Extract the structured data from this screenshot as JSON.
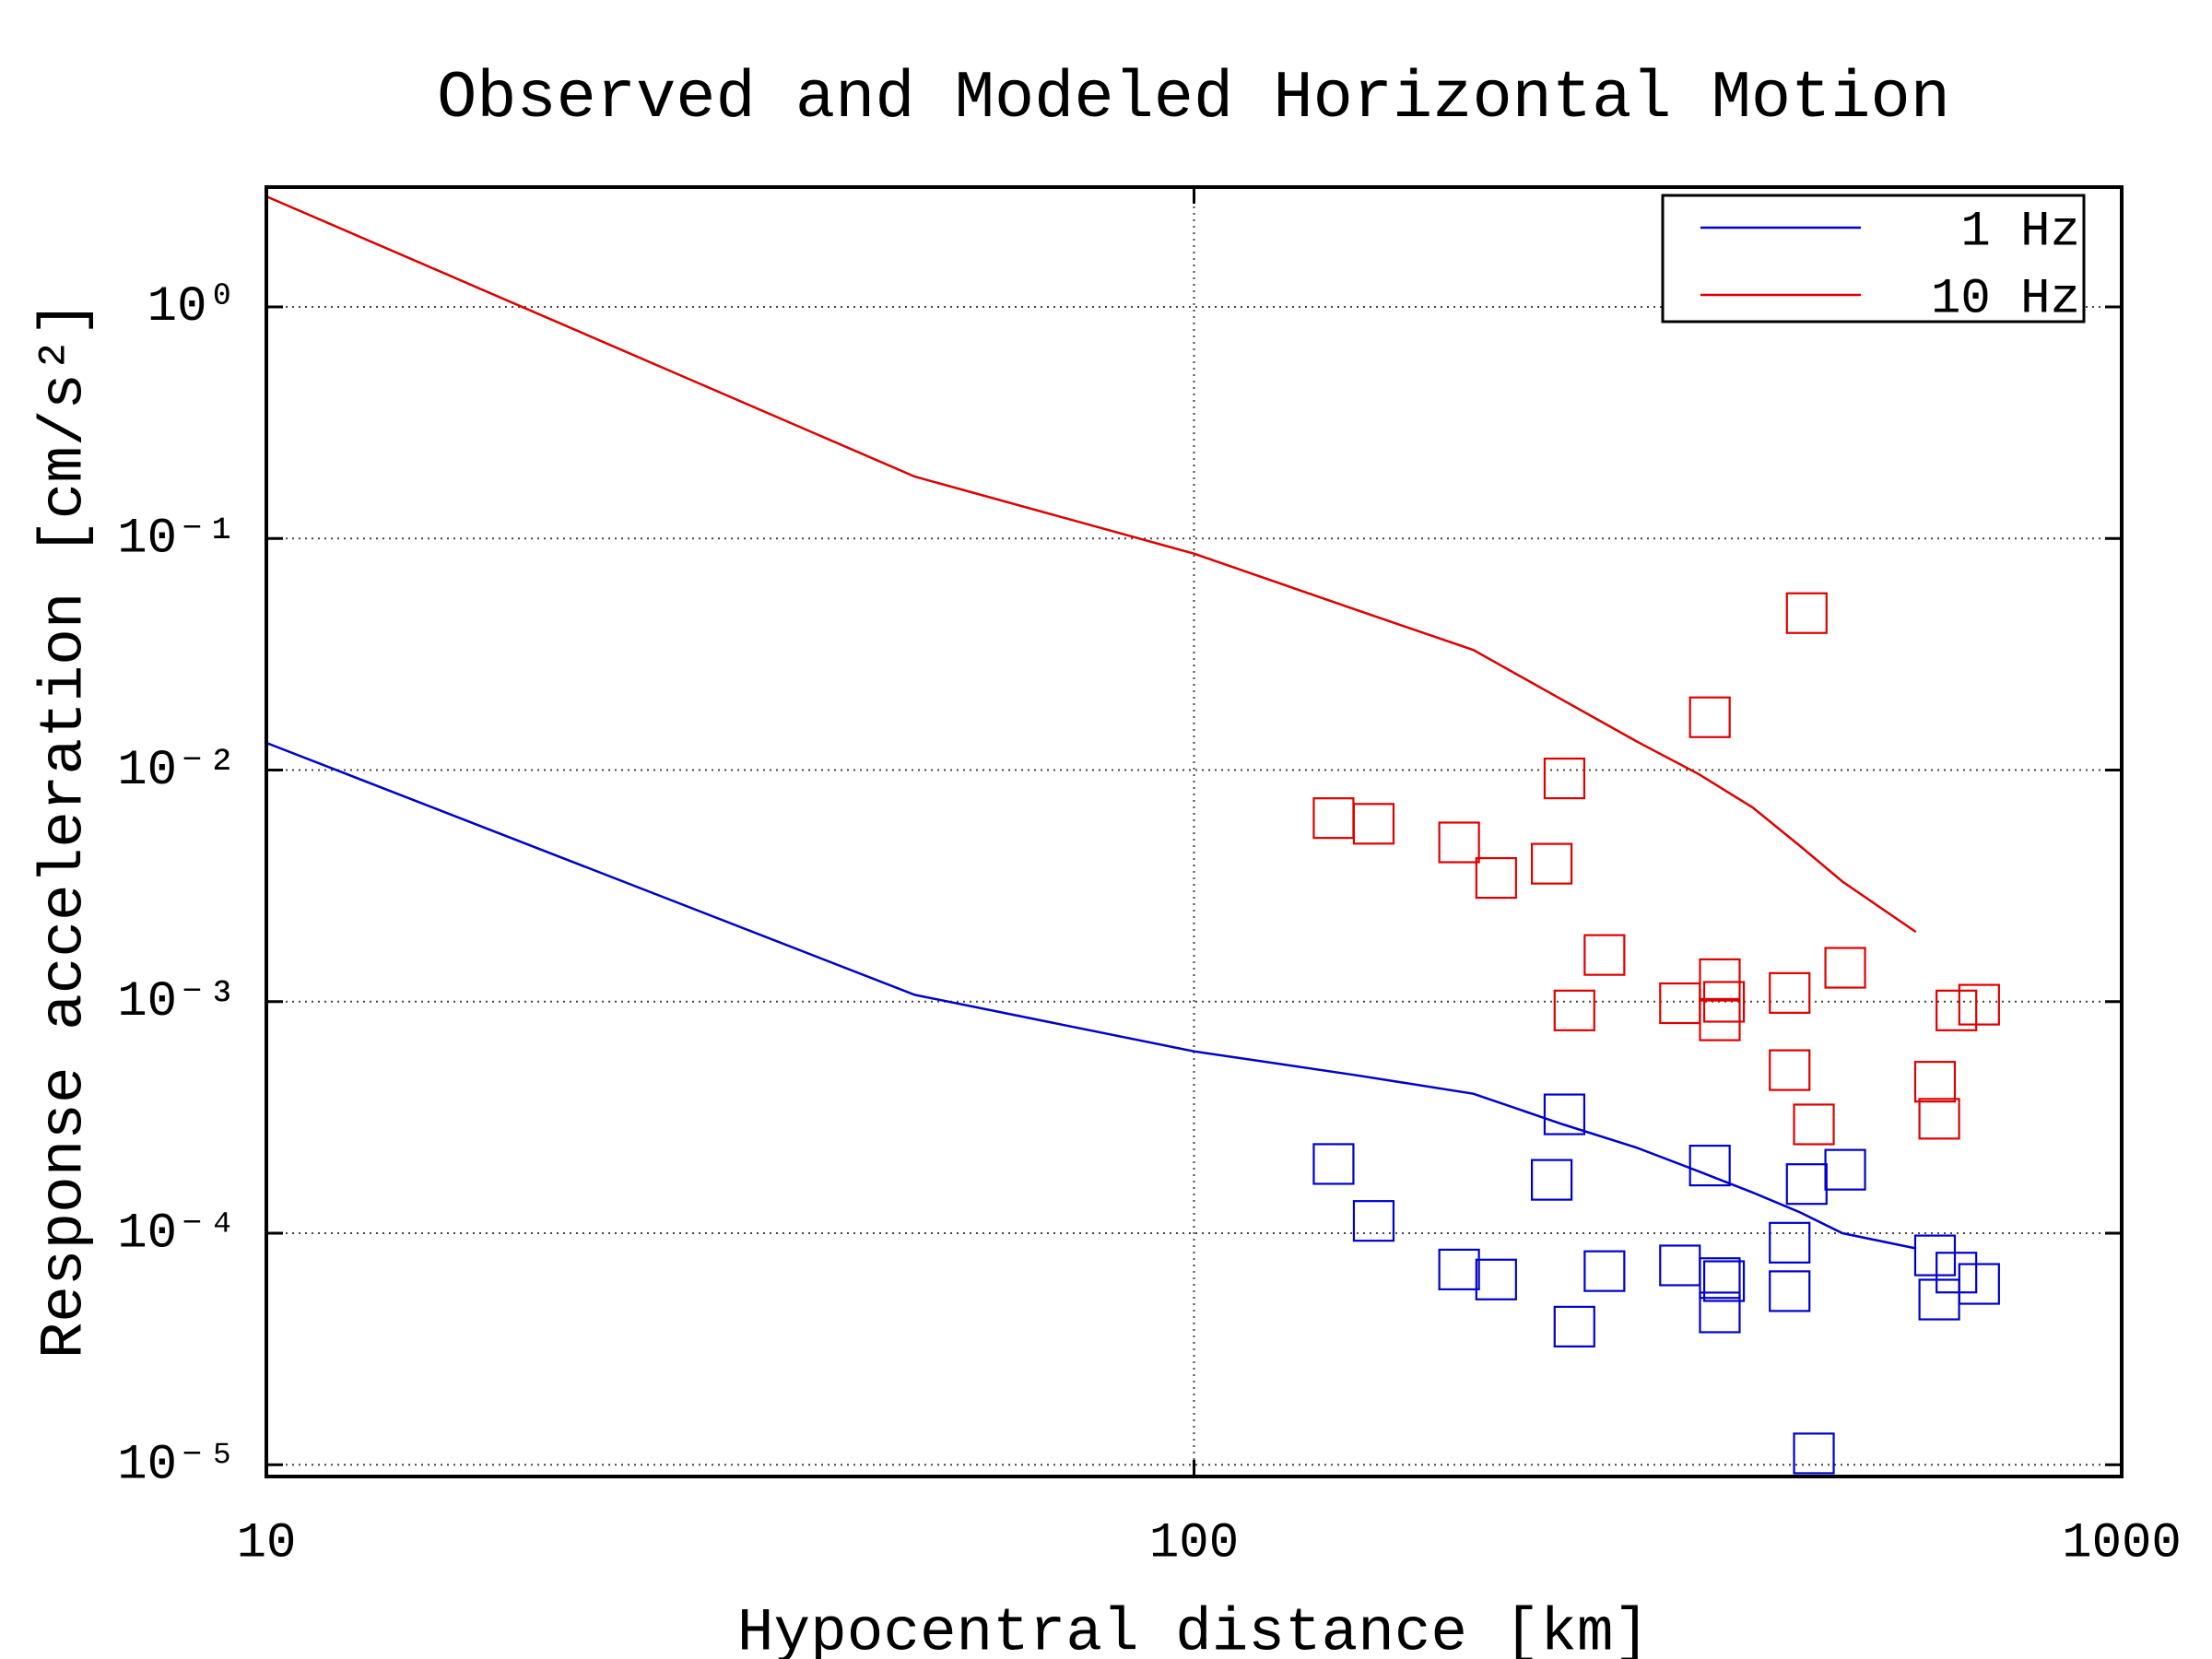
{
  "chart_data": {
    "type": "line",
    "title": "Observed and Modeled Horizontal Motion",
    "xlabel": "Hypocentral distance [km]",
    "ylabel": "Response acceleration [cm/s²]",
    "xscale": "log",
    "yscale": "log",
    "grid": true,
    "legend": "upper right",
    "xlim": [
      10,
      1000
    ],
    "xticks": [
      10,
      100,
      1000
    ],
    "ylim": [
      8.9e-06,
      3.29
    ],
    "yticks": [
      {
        "value": 1,
        "label": "10⁰"
      },
      {
        "value": 0.1,
        "label": "10⁻¹"
      },
      {
        "value": 0.01,
        "label": "10⁻²"
      },
      {
        "value": 0.001,
        "label": "10⁻³"
      },
      {
        "value": 0.0001,
        "label": "10⁻⁴"
      },
      {
        "value": 1e-05,
        "label": "10⁻⁵"
      }
    ],
    "x": [
      10,
      50,
      100,
      150,
      200,
      250,
      300,
      350,
      400,
      450,
      500,
      600
    ],
    "series": [
      {
        "name": "1 Hz",
        "color": "#0000cc",
        "values": [
          0.0131,
          0.00107,
          0.00061,
          0.00048,
          0.0004,
          0.000295,
          0.000234,
          0.000185,
          0.00015,
          0.000123,
          0.0001,
          8.6e-05
        ]
      },
      {
        "name": "10 Hz",
        "color": "#dd0000",
        "values": [
          3.0,
          0.185,
          0.086,
          0.049,
          0.033,
          0.02,
          0.0133,
          0.0096,
          0.0069,
          0.0047,
          0.0033,
          0.002
        ]
      }
    ],
    "points": [
      {
        "color": "#dd0000",
        "x": [
          141.4,
          156.2,
          193.1,
          211.7,
          243.0,
          250.8,
          257.1,
          277.0,
          334.1,
          359.8,
          368.8,
          368.8,
          372.7,
          438.6,
          438.6,
          457.6,
          465.8,
          503.5,
          629.2,
          635.9,
          663.5,
          702.0
        ],
        "values": [
          0.0062,
          0.00586,
          0.00487,
          0.00342,
          0.00394,
          0.0092,
          0.000916,
          0.00159,
          0.000984,
          0.0169,
          0.00125,
          0.00083,
          0.000998,
          0.00109,
          0.000506,
          0.0476,
          0.000295,
          0.0014,
          0.000451,
          0.000312,
          0.000916,
          0.00097
        ]
      },
      {
        "color": "#0000cc",
        "x": [
          141.4,
          156.2,
          193.1,
          211.7,
          243.0,
          250.8,
          257.1,
          277.0,
          334.1,
          359.8,
          368.8,
          368.8,
          372.7,
          438.6,
          438.6,
          457.6,
          465.8,
          503.5,
          629.2,
          635.9,
          663.5,
          702.0
        ],
        "values": [
          0.000199,
          0.000113,
          6.97e-05,
          6.31e-05,
          0.00017,
          0.000326,
          3.95e-05,
          6.86e-05,
          7.26e-05,
          0.000196,
          6.4e-05,
          4.55e-05,
          6.21e-05,
          9.1e-05,
          5.62e-05,
          0.000163,
          1.12e-05,
          0.000188,
          8.02e-05,
          5.17e-05,
          6.76e-05,
          6.04e-05
        ]
      }
    ]
  }
}
